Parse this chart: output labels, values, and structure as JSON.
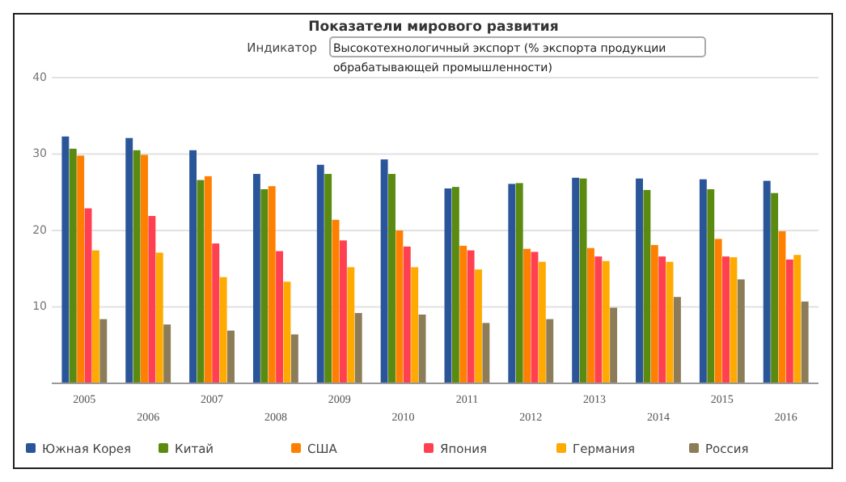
{
  "chart_data": {
    "type": "bar",
    "title": "Показатели мирового развития",
    "subtitle": "Высокотехнологичный экспорт (% экспорта продукции обрабатывающей промышленности)",
    "annotations": [
      "Индикатор"
    ],
    "categories": [
      "2005",
      "2006",
      "2007",
      "2008",
      "2009",
      "2010",
      "2011",
      "2012",
      "2013",
      "2014",
      "2015",
      "2016"
    ],
    "series": [
      {
        "name": "Южная Корея",
        "color": "#2a5699",
        "values": [
          32.3,
          32.1,
          30.5,
          27.4,
          28.6,
          29.3,
          25.5,
          26.1,
          26.9,
          26.8,
          26.7,
          26.5
        ]
      },
      {
        "name": "Китай",
        "color": "#5a8a10",
        "values": [
          30.7,
          30.5,
          26.6,
          25.4,
          27.4,
          27.4,
          25.7,
          26.2,
          26.8,
          25.3,
          25.4,
          24.9
        ]
      },
      {
        "name": "США",
        "color": "#ff8000",
        "values": [
          29.8,
          29.9,
          27.1,
          25.8,
          21.4,
          20.0,
          18.0,
          17.6,
          17.7,
          18.1,
          18.9,
          19.9
        ]
      },
      {
        "name": "Япония",
        "color": "#ff4050",
        "values": [
          22.9,
          21.9,
          18.3,
          17.3,
          18.7,
          17.9,
          17.4,
          17.2,
          16.6,
          16.6,
          16.6,
          16.2
        ]
      },
      {
        "name": "Германия",
        "color": "#ffaa00",
        "values": [
          17.4,
          17.1,
          13.9,
          13.3,
          15.2,
          15.2,
          14.9,
          15.9,
          16.0,
          15.9,
          16.5,
          16.8
        ]
      },
      {
        "name": "Россия",
        "color": "#8c7c58",
        "values": [
          8.4,
          7.7,
          6.9,
          6.4,
          9.2,
          9.0,
          7.9,
          8.4,
          9.9,
          11.3,
          13.6,
          10.7
        ]
      }
    ],
    "ylim": [
      0,
      40
    ],
    "yticks": [
      10,
      20,
      30,
      40
    ],
    "grid": "y",
    "legend": "bottom"
  }
}
